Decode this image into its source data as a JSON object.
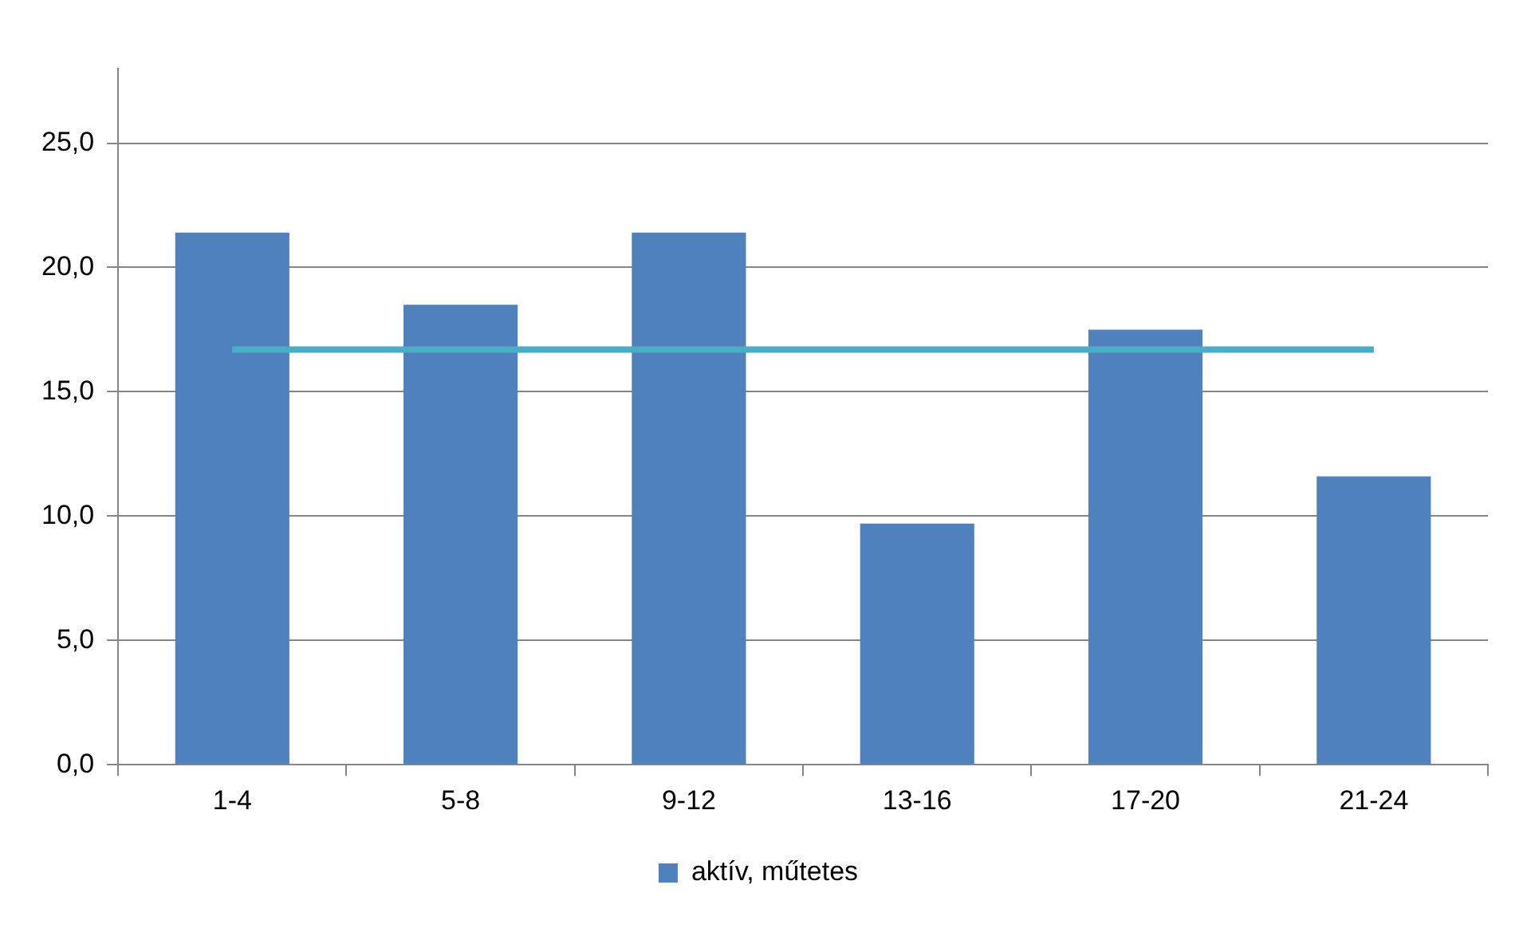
{
  "chart_data": {
    "type": "bar",
    "categories": [
      "1-4",
      "5-8",
      "9-12",
      "13-16",
      "17-20",
      "21-24"
    ],
    "series": [
      {
        "name": "aktív, műtetes",
        "color": "#4f81bd",
        "values": [
          21.4,
          18.5,
          21.4,
          9.7,
          17.5,
          11.6
        ]
      },
      {
        "type": "line",
        "color": "#4bacc6",
        "values": [
          16.7,
          16.7,
          16.7,
          16.7,
          16.7,
          16.7
        ],
        "marker": "none"
      }
    ],
    "ylim": [
      0,
      28
    ],
    "yticks": [
      {
        "value": 0,
        "label": "0,0"
      },
      {
        "value": 5,
        "label": "5,0"
      },
      {
        "value": 10,
        "label": "10,0"
      },
      {
        "value": 15,
        "label": "15,0"
      },
      {
        "value": 20,
        "label": "20,0"
      },
      {
        "value": 25,
        "label": "25,0"
      }
    ],
    "grid": "y",
    "legend": "bottom"
  }
}
